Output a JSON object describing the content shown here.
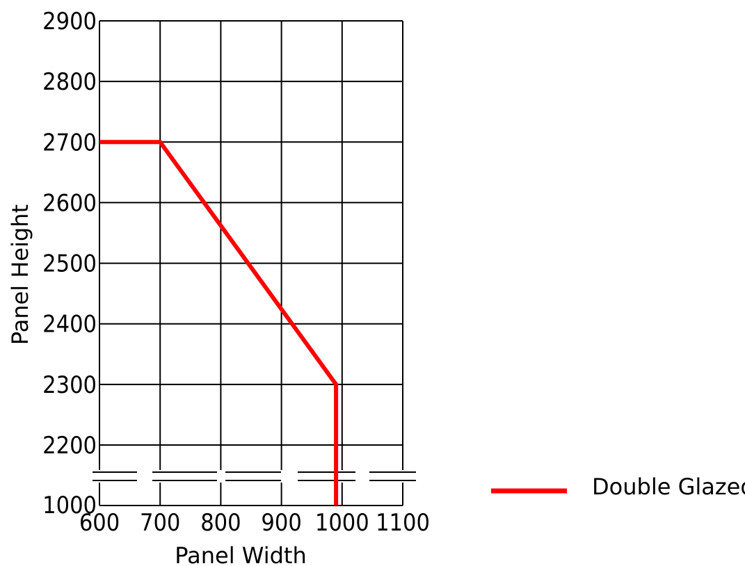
{
  "chart_data": {
    "type": "line",
    "title": "",
    "xlabel": "Panel Width",
    "ylabel": "Panel Height",
    "xlim": [
      600,
      1100
    ],
    "x_ticks": [
      "600",
      "700",
      "800",
      "900",
      "1000",
      "1100"
    ],
    "y_ticks_upper": [
      "2200",
      "2300",
      "2400",
      "2500",
      "2600",
      "2700",
      "2800",
      "2900"
    ],
    "y_tick_bottom": "1000",
    "y_axis_break": true,
    "grid": true,
    "legend_position": "right",
    "series": [
      {
        "name": "Double Glazed",
        "color": "#ff0000",
        "points": [
          {
            "x": 600,
            "y": 2700
          },
          {
            "x": 700,
            "y": 2700
          },
          {
            "x": 990,
            "y": 2300
          },
          {
            "x": 990,
            "y": 1000
          }
        ]
      }
    ]
  }
}
